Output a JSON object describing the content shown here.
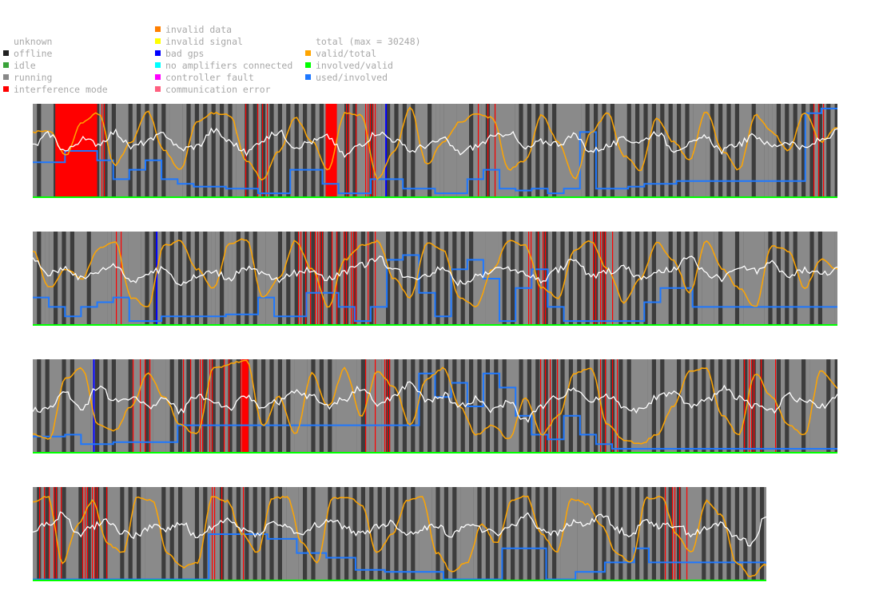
{
  "legend": {
    "states": [
      {
        "label": "unknown",
        "color": ""
      },
      {
        "label": "offline",
        "color": "#222222"
      },
      {
        "label": "idle",
        "color": "#3aa33a"
      },
      {
        "label": "running",
        "color": "#888888"
      },
      {
        "label": "interference mode",
        "color": "#ff0000"
      }
    ],
    "faults": [
      {
        "label": "invalid data",
        "color": "#ff7f00"
      },
      {
        "label": "invalid signal",
        "color": "#ffff00"
      },
      {
        "label": "bad gps",
        "color": "#0000ff"
      },
      {
        "label": "no amplifiers connected",
        "color": "#00ffff"
      },
      {
        "label": "controller fault",
        "color": "#ff00ff"
      },
      {
        "label": "communication error",
        "color": "#ff5f7f"
      }
    ],
    "series": [
      {
        "label": "total (max = 30248)",
        "color": ""
      },
      {
        "label": "valid/total",
        "color": "#ffa500"
      },
      {
        "label": "involved/valid",
        "color": "#00ff00"
      },
      {
        "label": "used/involved",
        "color": "#1e78ff"
      }
    ]
  },
  "chart_data": {
    "type": "line",
    "title": "",
    "xlabel": "",
    "ylabel": "",
    "ylim": [
      0,
      1
    ],
    "total_max": 30248,
    "background": {
      "offline": "#3c3c3c",
      "running": "#8a8a8a",
      "interference": "#ff0000",
      "bad_gps": "#0000ff"
    },
    "series_colors": {
      "total": "#ffffff",
      "valid_total": "#ffa500",
      "involved_valid": "#00ff00",
      "used_involved": "#1e78ff"
    },
    "rows": [
      {
        "fraction": 1.0,
        "interference_blocks": [
          [
            0.028,
            0.08
          ],
          [
            0.364,
            0.378
          ]
        ],
        "bad_gps": [
          0.438
        ],
        "total": [
          0.55,
          0.68,
          0.5,
          0.62,
          0.58,
          0.7,
          0.54,
          0.6,
          0.68,
          0.52,
          0.55,
          0.72,
          0.6,
          0.48,
          0.62,
          0.7,
          0.55,
          0.6,
          0.65,
          0.45,
          0.58,
          0.7,
          0.62,
          0.5,
          0.56,
          0.62,
          0.48,
          0.55,
          0.64,
          0.7,
          0.52,
          0.6,
          0.58,
          0.66,
          0.5,
          0.55,
          0.62,
          0.6,
          0.7,
          0.52,
          0.57,
          0.64,
          0.5,
          0.58,
          0.66,
          0.55,
          0.6,
          0.52,
          0.62,
          0.7
        ],
        "valid_total": [
          0.7,
          0.72,
          0.45,
          0.8,
          0.9,
          0.35,
          0.6,
          0.92,
          0.5,
          0.3,
          0.82,
          0.9,
          0.88,
          0.4,
          0.2,
          0.5,
          0.85,
          0.6,
          0.3,
          0.9,
          0.88,
          0.2,
          0.5,
          0.95,
          0.35,
          0.6,
          0.8,
          0.9,
          0.85,
          0.3,
          0.4,
          0.88,
          0.6,
          0.2,
          0.7,
          0.9,
          0.45,
          0.3,
          0.85,
          0.6,
          0.4,
          0.92,
          0.5,
          0.3,
          0.88,
          0.7,
          0.5,
          0.9,
          0.6,
          0.75
        ],
        "used_involved": [
          0.38,
          0.38,
          0.5,
          0.5,
          0.4,
          0.2,
          0.3,
          0.4,
          0.2,
          0.15,
          0.12,
          0.12,
          0.1,
          0.1,
          0.05,
          0.05,
          0.3,
          0.3,
          0.15,
          0.05,
          0.05,
          0.2,
          0.2,
          0.1,
          0.1,
          0.05,
          0.05,
          0.2,
          0.3,
          0.1,
          0.08,
          0.1,
          0.05,
          0.1,
          0.7,
          0.1,
          0.1,
          0.12,
          0.15,
          0.15,
          0.18,
          0.18,
          0.18,
          0.18,
          0.18,
          0.18,
          0.18,
          0.18,
          0.9,
          0.95
        ]
      },
      {
        "fraction": 1.0,
        "interference_blocks": [],
        "bad_gps": [
          0.153
        ],
        "total": [
          0.7,
          0.55,
          0.62,
          0.5,
          0.58,
          0.65,
          0.48,
          0.55,
          0.6,
          0.45,
          0.52,
          0.58,
          0.5,
          0.62,
          0.55,
          0.48,
          0.56,
          0.6,
          0.5,
          0.58,
          0.64,
          0.72,
          0.6,
          0.5,
          0.55,
          0.62,
          0.45,
          0.52,
          0.58,
          0.62,
          0.55,
          0.48,
          0.6,
          0.7,
          0.52,
          0.58,
          0.62,
          0.5,
          0.56,
          0.6,
          0.72,
          0.55,
          0.5,
          0.62,
          0.58,
          0.66,
          0.52,
          0.6,
          0.55,
          0.6
        ],
        "valid_total": [
          0.8,
          0.4,
          0.6,
          0.5,
          0.82,
          0.9,
          0.3,
          0.2,
          0.85,
          0.9,
          0.6,
          0.4,
          0.88,
          0.92,
          0.3,
          0.5,
          0.9,
          0.6,
          0.2,
          0.7,
          0.85,
          0.9,
          0.5,
          0.3,
          0.88,
          0.8,
          0.3,
          0.2,
          0.6,
          0.9,
          0.85,
          0.4,
          0.3,
          0.8,
          0.9,
          0.6,
          0.25,
          0.5,
          0.88,
          0.7,
          0.35,
          0.9,
          0.6,
          0.4,
          0.2,
          0.85,
          0.8,
          0.4,
          0.7,
          0.6
        ],
        "used_involved": [
          0.3,
          0.2,
          0.1,
          0.2,
          0.25,
          0.3,
          0.05,
          0.05,
          0.1,
          0.1,
          0.1,
          0.1,
          0.12,
          0.12,
          0.3,
          0.1,
          0.1,
          0.35,
          0.35,
          0.2,
          0.05,
          0.2,
          0.7,
          0.75,
          0.35,
          0.1,
          0.6,
          0.7,
          0.5,
          0.05,
          0.4,
          0.6,
          0.2,
          0.05,
          0.05,
          0.05,
          0.05,
          0.05,
          0.25,
          0.4,
          0.4,
          0.2,
          0.2,
          0.2,
          0.2,
          0.2,
          0.2,
          0.2,
          0.2,
          0.2
        ]
      },
      {
        "fraction": 1.0,
        "interference_blocks": [
          [
            0.26,
            0.268
          ]
        ],
        "bad_gps": [
          0.075
        ],
        "total": [
          0.45,
          0.5,
          0.65,
          0.48,
          0.72,
          0.55,
          0.6,
          0.5,
          0.58,
          0.45,
          0.62,
          0.55,
          0.48,
          0.6,
          0.5,
          0.55,
          0.65,
          0.6,
          0.5,
          0.58,
          0.7,
          0.52,
          0.6,
          0.75,
          0.55,
          0.62,
          0.5,
          0.58,
          0.45,
          0.55,
          0.35,
          0.5,
          0.6,
          0.7,
          0.55,
          0.62,
          0.5,
          0.45,
          0.6,
          0.65,
          0.5,
          0.55,
          0.7,
          0.6,
          0.5,
          0.45,
          0.62,
          0.55,
          0.5,
          0.6
        ],
        "valid_total": [
          0.2,
          0.15,
          0.8,
          0.9,
          0.3,
          0.25,
          0.5,
          0.85,
          0.6,
          0.3,
          0.2,
          0.9,
          0.95,
          1.0,
          0.3,
          0.6,
          0.2,
          0.85,
          0.5,
          0.9,
          0.4,
          0.88,
          0.7,
          0.3,
          0.8,
          0.9,
          0.5,
          0.2,
          0.3,
          0.15,
          0.6,
          0.2,
          0.4,
          0.85,
          0.9,
          0.3,
          0.15,
          0.1,
          0.2,
          0.5,
          0.88,
          0.9,
          0.4,
          0.2,
          0.85,
          0.6,
          0.3,
          0.2,
          0.88,
          0.7
        ],
        "used_involved": [
          0.18,
          0.18,
          0.2,
          0.1,
          0.1,
          0.12,
          0.12,
          0.12,
          0.12,
          0.3,
          0.3,
          0.3,
          0.3,
          0.3,
          0.3,
          0.3,
          0.3,
          0.3,
          0.3,
          0.3,
          0.3,
          0.3,
          0.3,
          0.3,
          0.85,
          0.6,
          0.75,
          0.5,
          0.85,
          0.7,
          0.4,
          0.2,
          0.15,
          0.4,
          0.2,
          0.1,
          0.05,
          0.05,
          0.05,
          0.05,
          0.05,
          0.05,
          0.05,
          0.05,
          0.05,
          0.05,
          0.05,
          0.05,
          0.05,
          0.05
        ]
      },
      {
        "fraction": 0.9115,
        "interference_blocks": [],
        "bad_gps": [],
        "total": [
          0.55,
          0.6,
          0.72,
          0.5,
          0.58,
          0.65,
          0.52,
          0.48,
          0.6,
          0.55,
          0.62,
          0.45,
          0.58,
          0.65,
          0.55,
          0.5,
          0.62,
          0.58,
          0.48,
          0.6,
          0.65,
          0.55,
          0.5,
          0.58,
          0.62,
          0.5,
          0.55,
          0.6,
          0.48,
          0.62,
          0.55,
          0.5,
          0.6,
          0.7,
          0.55,
          0.5,
          0.62,
          0.6,
          0.72,
          0.55,
          0.5,
          0.65,
          0.58,
          0.6,
          0.5,
          0.55,
          0.62,
          0.48,
          0.4,
          0.7
        ],
        "valid_total": [
          0.85,
          0.9,
          0.2,
          0.6,
          0.85,
          0.4,
          0.3,
          0.9,
          0.85,
          0.3,
          0.15,
          0.2,
          0.9,
          0.85,
          0.5,
          0.3,
          0.88,
          0.9,
          0.4,
          0.2,
          0.88,
          0.9,
          0.8,
          0.3,
          0.5,
          0.85,
          0.9,
          0.3,
          0.1,
          0.2,
          0.6,
          0.4,
          0.85,
          0.9,
          0.5,
          0.3,
          0.88,
          0.82,
          0.6,
          0.3,
          0.2,
          0.88,
          0.9,
          0.5,
          0.3,
          0.85,
          0.7,
          0.2,
          0.05,
          0.18
        ],
        "used_involved": [
          0.02,
          0.02,
          0.02,
          0.02,
          0.02,
          0.02,
          0.02,
          0.02,
          0.02,
          0.02,
          0.02,
          0.02,
          0.5,
          0.5,
          0.5,
          0.5,
          0.45,
          0.45,
          0.3,
          0.3,
          0.25,
          0.25,
          0.12,
          0.12,
          0.1,
          0.1,
          0.1,
          0.1,
          0.02,
          0.02,
          0.02,
          0.02,
          0.35,
          0.35,
          0.35,
          0.02,
          0.02,
          0.1,
          0.1,
          0.2,
          0.2,
          0.35,
          0.2,
          0.2,
          0.2,
          0.2,
          0.2,
          0.2,
          0.2,
          0.2
        ]
      }
    ]
  }
}
